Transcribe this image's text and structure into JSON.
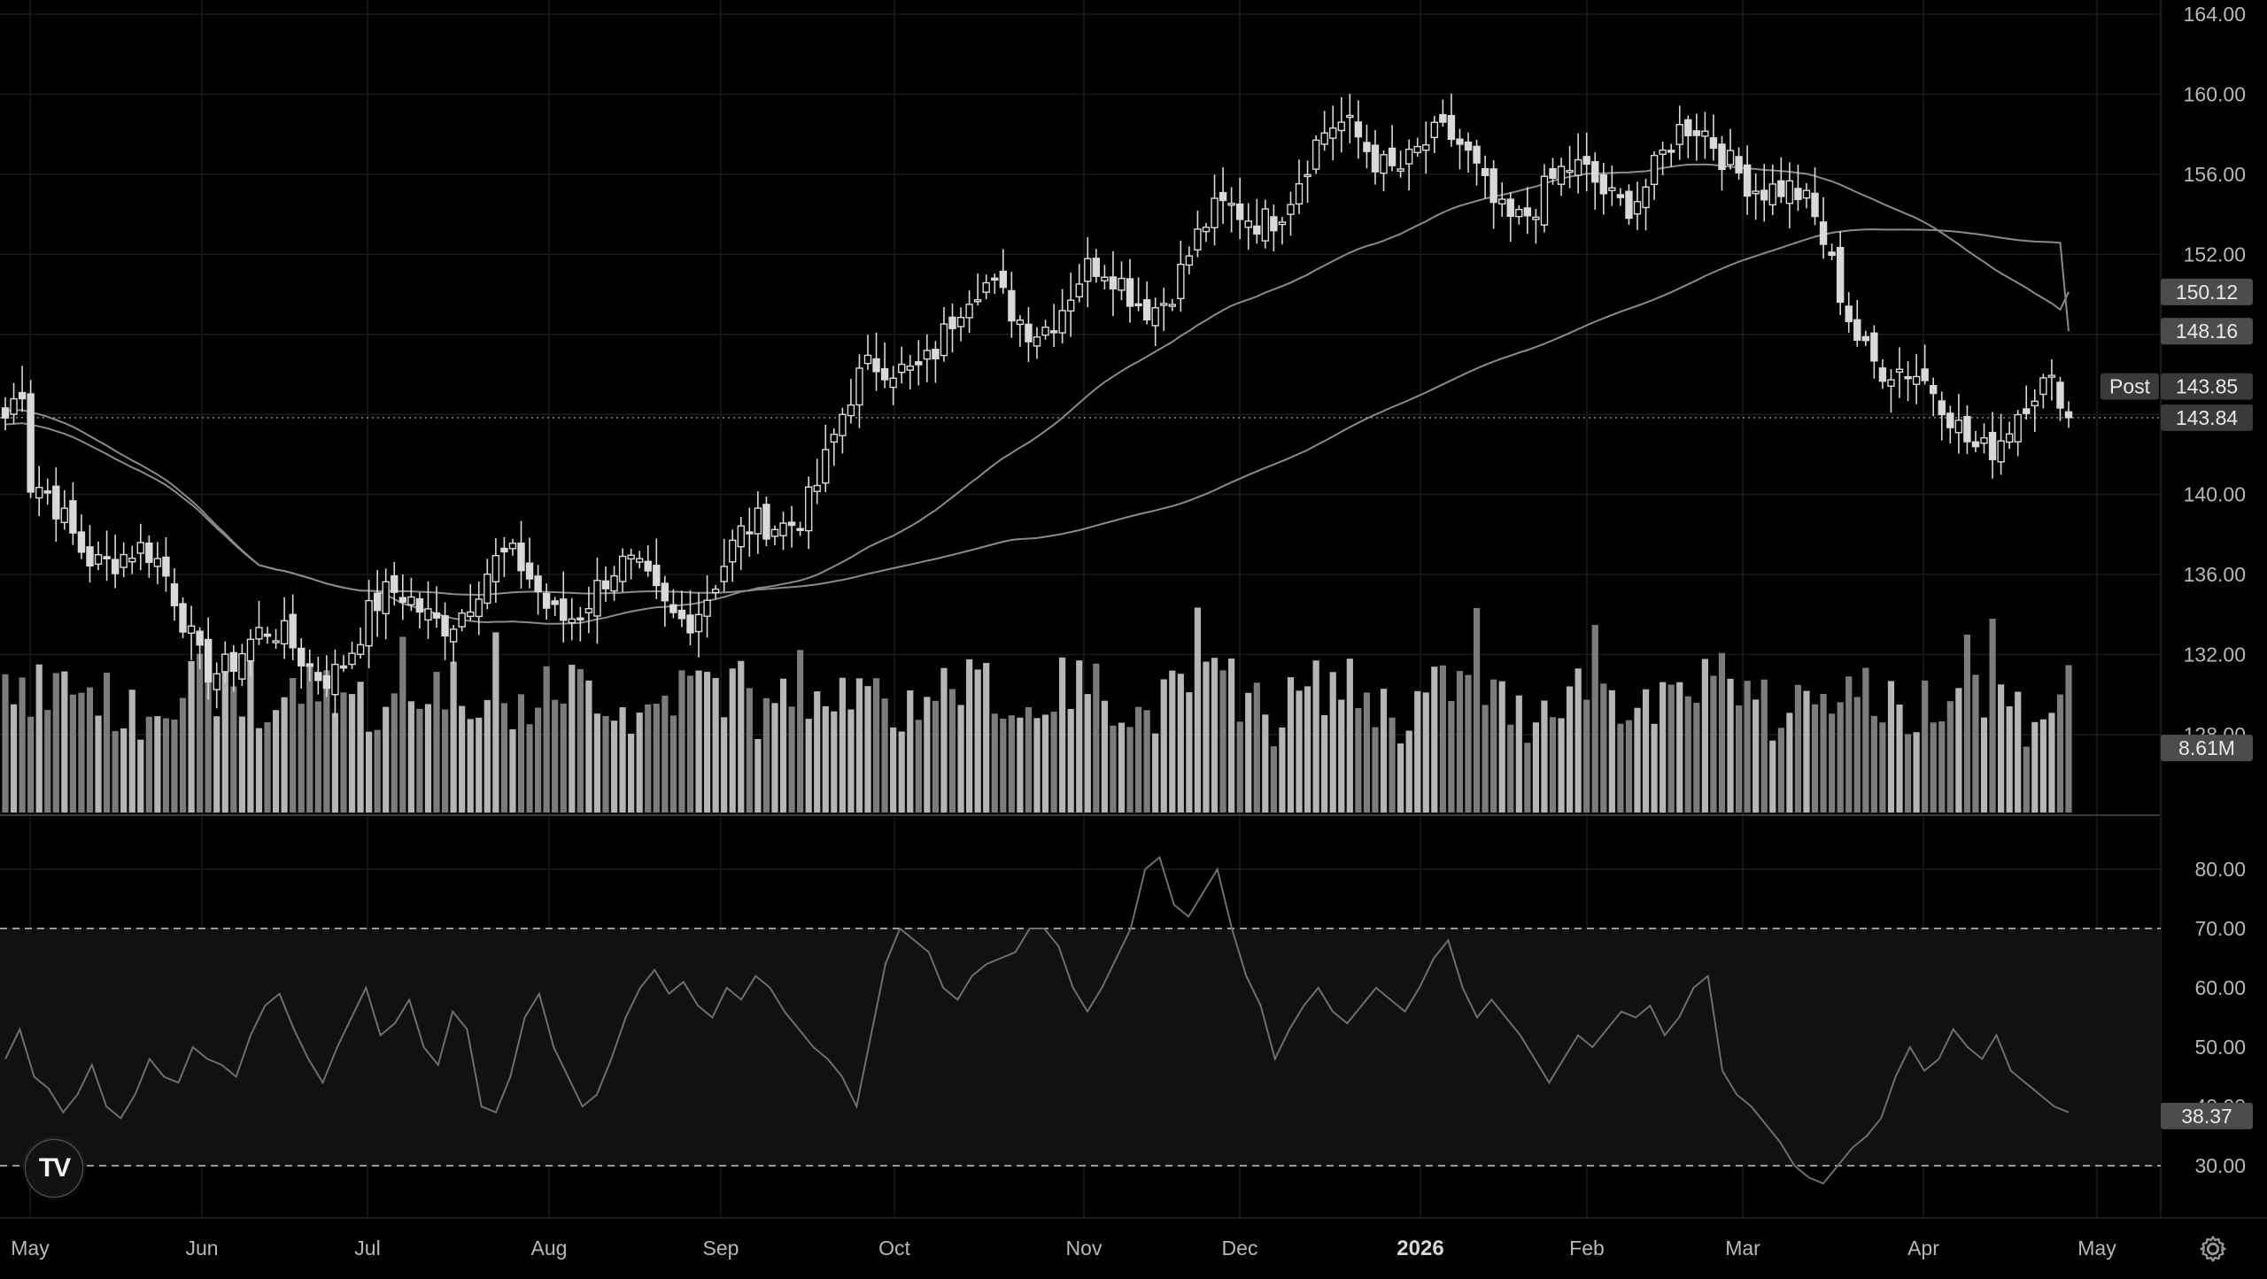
{
  "price_axis": {
    "ticks": [
      "164.00",
      "160.00",
      "156.00",
      "152.00",
      "148.00",
      "144.00",
      "140.00",
      "136.00",
      "132.00",
      "128.00"
    ],
    "badges": {
      "ma_long": "150.12",
      "ma_short": "148.16",
      "post_label": "Post",
      "post_price": "143.85",
      "last_price": "143.84",
      "volume": "8.61M"
    }
  },
  "rsi_axis": {
    "ticks": [
      "80.00",
      "70.00",
      "60.00",
      "50.00",
      "40.00",
      "30.00"
    ],
    "badge": "38.37"
  },
  "time_axis": {
    "labels": [
      "May",
      "Jun",
      "Jul",
      "Aug",
      "Sep",
      "Oct",
      "Nov",
      "Dec",
      "2026",
      "Feb",
      "Mar",
      "Apr",
      "May"
    ],
    "strong": "2026"
  },
  "colors": {
    "background": "#000000",
    "candle": "#d9d9d9",
    "volume_bar": "#9a9a9a",
    "ma_line": "#8a8a8a",
    "rsi_line": "#6e6e6e",
    "rsi_band": "#111111",
    "grid": "#1a1a1a"
  },
  "logo": {
    "text": "TV",
    "icon": "tradingview-logo-icon"
  },
  "settings_icon": "gear-icon",
  "chart_data": [
    {
      "type": "candlestick",
      "title": "",
      "x_range": [
        "May",
        "May"
      ],
      "ylim": [
        128,
        164
      ],
      "grid": true,
      "last_price": 143.84,
      "post_market_price": 143.85,
      "closes_approx": [
        {
          "month": "May",
          "close": 138.5
        },
        {
          "month": "Jun",
          "close": 132.5
        },
        {
          "month": "Jul",
          "close": 134.5
        },
        {
          "month": "Aug",
          "close": 133.5
        },
        {
          "month": "Sep",
          "close": 137.5
        },
        {
          "month": "Oct",
          "close": 145.0
        },
        {
          "month": "Nov",
          "close": 151.5
        },
        {
          "month": "Dec",
          "close": 153.5
        },
        {
          "month": "2026",
          "close": 157.0
        },
        {
          "month": "Feb",
          "close": 156.5
        },
        {
          "month": "Mar",
          "close": 155.5
        },
        {
          "month": "Apr",
          "close": 146.0
        },
        {
          "month": "end",
          "close": 143.84
        }
      ],
      "series": [
        {
          "name": "",
          "type": "moving-average",
          "last_value": 150.12
        },
        {
          "name": "",
          "type": "moving-average",
          "last_value": 148.16
        }
      ]
    },
    {
      "type": "bar",
      "title": "",
      "series": [
        {
          "name": "",
          "last_value": "8.61M"
        }
      ]
    },
    {
      "type": "line",
      "title": "",
      "ylim": [
        25,
        85
      ],
      "bands": [
        30,
        70
      ],
      "last_value": 38.37,
      "values": [
        48,
        53,
        45,
        43,
        39,
        42,
        47,
        40,
        38,
        42,
        48,
        45,
        44,
        50,
        48,
        47,
        45,
        52,
        57,
        59,
        53,
        48,
        44,
        50,
        55,
        60,
        52,
        54,
        58,
        50,
        47,
        56,
        53,
        40,
        39,
        45,
        55,
        59,
        50,
        45,
        40,
        42,
        48,
        55,
        60,
        63,
        59,
        61,
        57,
        55,
        60,
        58,
        62,
        60,
        56,
        53,
        50,
        48,
        45,
        40,
        52,
        64,
        70,
        68,
        66,
        60,
        58,
        62,
        64,
        65,
        66,
        70,
        70,
        67,
        60,
        56,
        60,
        65,
        70,
        80,
        82,
        74,
        72,
        76,
        80,
        70,
        62,
        57,
        48,
        53,
        57,
        60,
        56,
        54,
        57,
        60,
        58,
        56,
        60,
        65,
        68,
        60,
        55,
        58,
        55,
        52,
        48,
        44,
        48,
        52,
        50,
        53,
        56,
        55,
        57,
        52,
        55,
        60,
        62,
        46,
        42,
        40,
        37,
        34,
        30,
        28,
        27,
        30,
        33,
        35,
        38,
        45,
        50,
        46,
        48,
        53,
        50,
        48,
        52,
        46,
        44,
        42,
        40,
        39
      ]
    }
  ]
}
